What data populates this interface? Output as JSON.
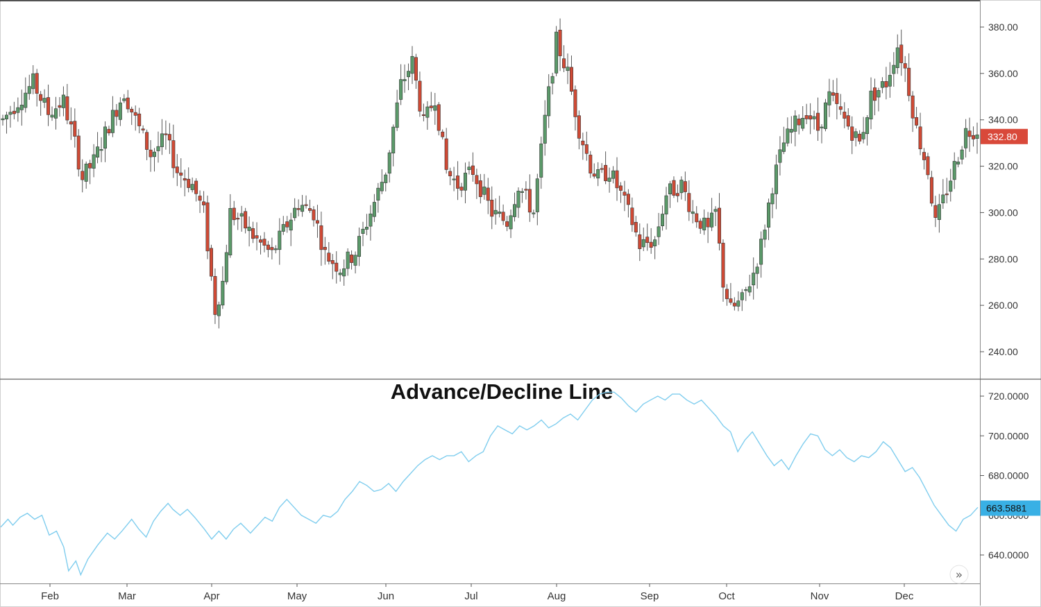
{
  "chart_data": [
    {
      "type": "candlestick",
      "name": "price",
      "ylim": [
        230,
        390
      ],
      "y_ticks": [
        "240.00",
        "260.00",
        "280.00",
        "300.00",
        "320.00",
        "340.00",
        "360.00",
        "380.00"
      ],
      "last_price_label": "332.80",
      "colors": {
        "up": "#5b9a6a",
        "down": "#d04a35",
        "last_badge": "#d9493a"
      },
      "anchors": [
        [
          0,
          340
        ],
        [
          5,
          350
        ],
        [
          8,
          356
        ],
        [
          12,
          343
        ],
        [
          16,
          348
        ],
        [
          19,
          330
        ],
        [
          21,
          315
        ],
        [
          24,
          322
        ],
        [
          28,
          338
        ],
        [
          32,
          352
        ],
        [
          35,
          340
        ],
        [
          39,
          325
        ],
        [
          43,
          332
        ],
        [
          46,
          318
        ],
        [
          50,
          312
        ],
        [
          53,
          300
        ],
        [
          56,
          258
        ],
        [
          58,
          270
        ],
        [
          60,
          300
        ],
        [
          63,
          296
        ],
        [
          67,
          288
        ],
        [
          71,
          282
        ],
        [
          74,
          292
        ],
        [
          78,
          304
        ],
        [
          82,
          300
        ],
        [
          85,
          282
        ],
        [
          89,
          276
        ],
        [
          93,
          283
        ],
        [
          97,
          300
        ],
        [
          101,
          318
        ],
        [
          105,
          355
        ],
        [
          108,
          365
        ],
        [
          111,
          338
        ],
        [
          114,
          350
        ],
        [
          117,
          318
        ],
        [
          120,
          312
        ],
        [
          124,
          318
        ],
        [
          129,
          300
        ],
        [
          133,
          296
        ],
        [
          136,
          312
        ],
        [
          140,
          300
        ],
        [
          143,
          340
        ],
        [
          146,
          374
        ],
        [
          149,
          360
        ],
        [
          152,
          336
        ],
        [
          155,
          320
        ],
        [
          157,
          315
        ],
        [
          160,
          318
        ],
        [
          163,
          308
        ],
        [
          166,
          296
        ],
        [
          168,
          286
        ],
        [
          172,
          288
        ],
        [
          175,
          308
        ],
        [
          179,
          312
        ],
        [
          182,
          300
        ],
        [
          186,
          292
        ],
        [
          188,
          300
        ],
        [
          190,
          270
        ],
        [
          192,
          258
        ],
        [
          195,
          262
        ],
        [
          198,
          274
        ],
        [
          200,
          286
        ],
        [
          203,
          312
        ],
        [
          206,
          330
        ],
        [
          209,
          338
        ],
        [
          212,
          344
        ],
        [
          215,
          336
        ],
        [
          218,
          350
        ],
        [
          222,
          340
        ],
        [
          226,
          330
        ],
        [
          229,
          350
        ],
        [
          233,
          356
        ],
        [
          236,
          372
        ],
        [
          238,
          362
        ],
        [
          241,
          336
        ],
        [
          244,
          318
        ],
        [
          246,
          295
        ],
        [
          248,
          305
        ],
        [
          251,
          320
        ],
        [
          254,
          335
        ],
        [
          257,
          336
        ]
      ],
      "months": [
        "Feb",
        "Mar",
        "Apr",
        "May",
        "Jun",
        "Jul",
        "Aug",
        "Sep",
        "Oct",
        "Nov",
        "Dec"
      ]
    },
    {
      "type": "line",
      "name": "Advance/Decline Line",
      "title": "Advance/Decline Line",
      "ylim": [
        627,
        727
      ],
      "y_ticks": [
        "640.0000",
        "660.0000",
        "680.0000",
        "700.0000",
        "720.0000"
      ],
      "last_value_label": "663.5881",
      "colors": {
        "line": "#7fcdee",
        "last_badge": "#39b0e5"
      },
      "points": [
        [
          0,
          654
        ],
        [
          3,
          658
        ],
        [
          5,
          655
        ],
        [
          8,
          659
        ],
        [
          11,
          661
        ],
        [
          14,
          658
        ],
        [
          17,
          660
        ],
        [
          20,
          650
        ],
        [
          23,
          652
        ],
        [
          26,
          644
        ],
        [
          28,
          632
        ],
        [
          31,
          637
        ],
        [
          33,
          630
        ],
        [
          36,
          638
        ],
        [
          40,
          645
        ],
        [
          44,
          651
        ],
        [
          47,
          648
        ],
        [
          50,
          652
        ],
        [
          54,
          658
        ],
        [
          57,
          653
        ],
        [
          60,
          649
        ],
        [
          63,
          657
        ],
        [
          66,
          662
        ],
        [
          69,
          666
        ],
        [
          71,
          663
        ],
        [
          74,
          660
        ],
        [
          77,
          663
        ],
        [
          80,
          659
        ],
        [
          84,
          653
        ],
        [
          87,
          648
        ],
        [
          90,
          652
        ],
        [
          93,
          648
        ],
        [
          96,
          653
        ],
        [
          99,
          656
        ],
        [
          103,
          651
        ],
        [
          106,
          655
        ],
        [
          109,
          659
        ],
        [
          112,
          657
        ],
        [
          115,
          664
        ],
        [
          118,
          668
        ],
        [
          121,
          664
        ],
        [
          124,
          660
        ],
        [
          127,
          658
        ],
        [
          130,
          656
        ],
        [
          133,
          660
        ],
        [
          136,
          659
        ],
        [
          139,
          662
        ],
        [
          142,
          668
        ],
        [
          145,
          672
        ],
        [
          148,
          677
        ],
        [
          151,
          675
        ],
        [
          154,
          672
        ],
        [
          157,
          673
        ],
        [
          160,
          676
        ],
        [
          163,
          672
        ],
        [
          166,
          677
        ],
        [
          169,
          681
        ],
        [
          172,
          685
        ],
        [
          175,
          688
        ],
        [
          178,
          690
        ],
        [
          181,
          688
        ],
        [
          184,
          690
        ],
        [
          187,
          690
        ],
        [
          190,
          692
        ],
        [
          193,
          687
        ],
        [
          196,
          690
        ],
        [
          199,
          692
        ],
        [
          202,
          700
        ],
        [
          205,
          705
        ],
        [
          208,
          703
        ],
        [
          211,
          701
        ],
        [
          214,
          705
        ],
        [
          217,
          703
        ],
        [
          220,
          705
        ],
        [
          223,
          708
        ],
        [
          226,
          704
        ],
        [
          229,
          706
        ],
        [
          232,
          709
        ],
        [
          235,
          711
        ],
        [
          238,
          708
        ],
        [
          241,
          713
        ],
        [
          244,
          718
        ],
        [
          247,
          721
        ],
        [
          250,
          722
        ],
        [
          253,
          722
        ],
        [
          256,
          719
        ],
        [
          259,
          715
        ],
        [
          262,
          712
        ],
        [
          265,
          716
        ],
        [
          268,
          718
        ],
        [
          271,
          720
        ],
        [
          274,
          718
        ],
        [
          277,
          721
        ],
        [
          280,
          721
        ],
        [
          283,
          718
        ],
        [
          286,
          716
        ],
        [
          289,
          718
        ],
        [
          292,
          714
        ],
        [
          295,
          710
        ],
        [
          298,
          705
        ],
        [
          301,
          702
        ],
        [
          304,
          692
        ],
        [
          307,
          698
        ],
        [
          310,
          702
        ],
        [
          313,
          696
        ],
        [
          316,
          690
        ],
        [
          319,
          685
        ],
        [
          322,
          688
        ],
        [
          325,
          683
        ],
        [
          328,
          690
        ],
        [
          331,
          696
        ],
        [
          334,
          701
        ],
        [
          337,
          700
        ],
        [
          340,
          693
        ],
        [
          343,
          690
        ],
        [
          346,
          693
        ],
        [
          349,
          689
        ],
        [
          352,
          687
        ],
        [
          355,
          690
        ],
        [
          358,
          689
        ],
        [
          361,
          692
        ],
        [
          364,
          697
        ],
        [
          367,
          694
        ],
        [
          370,
          688
        ],
        [
          373,
          682
        ],
        [
          376,
          684
        ],
        [
          379,
          679
        ],
        [
          382,
          672
        ],
        [
          385,
          665
        ],
        [
          388,
          660
        ],
        [
          391,
          655
        ],
        [
          394,
          652
        ],
        [
          397,
          658
        ],
        [
          400,
          660
        ],
        [
          403,
          664
        ]
      ],
      "months": [
        "Feb",
        "Mar",
        "Apr",
        "May",
        "Jun",
        "Jul",
        "Aug",
        "Sep",
        "Oct",
        "Nov",
        "Dec"
      ]
    }
  ],
  "controls": {
    "scroll_button_symbol": "»",
    "scroll_button_name": "scroll-to-latest"
  }
}
